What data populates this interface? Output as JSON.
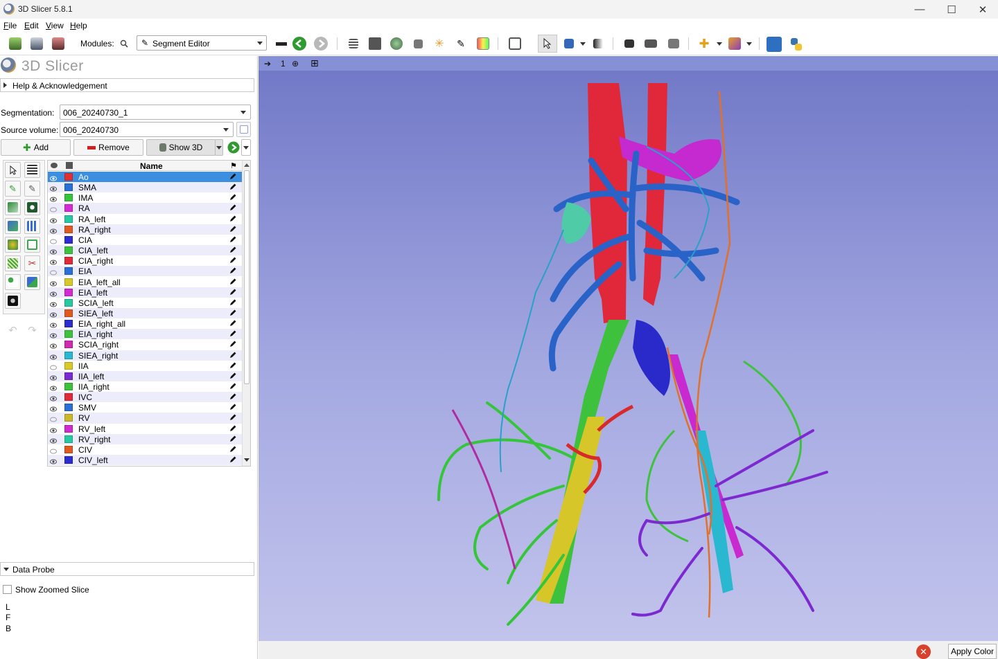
{
  "window": {
    "title": "3D Slicer 5.8.1"
  },
  "menu": [
    "File",
    "Edit",
    "View",
    "Help"
  ],
  "toolbar": {
    "modules_label": "Modules:",
    "module_selected": "Segment Editor",
    "icons": [
      "data-icon",
      "dcm-icon",
      "save-icon"
    ]
  },
  "panel": {
    "logo_text": "3D Slicer",
    "help_section": "Help & Acknowledgement",
    "segmentation_label": "Segmentation:",
    "segmentation_value": "006_20240730_1",
    "source_label": "Source volume:",
    "source_value": "006_20240730",
    "add_label": "Add",
    "remove_label": "Remove",
    "show3d_label": "Show 3D",
    "name_header": "Name"
  },
  "segments": [
    {
      "name": "Ao",
      "color": "#e03030",
      "visible": true,
      "selected": true
    },
    {
      "name": "SMA",
      "color": "#2a6fd6",
      "visible": true
    },
    {
      "name": "IMA",
      "color": "#35c53a",
      "visible": true
    },
    {
      "name": "RA",
      "color": "#d62ad6",
      "visible": false
    },
    {
      "name": "RA_left",
      "color": "#27c9a3",
      "visible": true
    },
    {
      "name": "RA_right",
      "color": "#e05a20",
      "visible": true
    },
    {
      "name": "CIA",
      "color": "#2c2cd0",
      "visible": false
    },
    {
      "name": "CIA_left",
      "color": "#3ec23e",
      "visible": true
    },
    {
      "name": "CIA_right",
      "color": "#e02a3a",
      "visible": true
    },
    {
      "name": "EIA",
      "color": "#2a6fd6",
      "visible": false
    },
    {
      "name": "EIA_left_all",
      "color": "#d8c82a",
      "visible": true
    },
    {
      "name": "EIA_left",
      "color": "#d02ad0",
      "visible": true
    },
    {
      "name": "SCIA_left",
      "color": "#27c9a3",
      "visible": true
    },
    {
      "name": "SIEA_left",
      "color": "#e05a20",
      "visible": true
    },
    {
      "name": "EIA_right_all",
      "color": "#2c2cd0",
      "visible": true
    },
    {
      "name": "EIA_right",
      "color": "#3ec23e",
      "visible": true
    },
    {
      "name": "SCIA_right",
      "color": "#d02ab0",
      "visible": true
    },
    {
      "name": "SIEA_right",
      "color": "#2ab7d0",
      "visible": true
    },
    {
      "name": "IIA",
      "color": "#d8c82a",
      "visible": false
    },
    {
      "name": "IIA_left",
      "color": "#7a2ad0",
      "visible": true
    },
    {
      "name": "IIA_right",
      "color": "#3ec23e",
      "visible": true
    },
    {
      "name": "IVC",
      "color": "#e02a3a",
      "visible": true
    },
    {
      "name": "SMV",
      "color": "#2a6fd6",
      "visible": true
    },
    {
      "name": "RV",
      "color": "#c8b82a",
      "visible": false
    },
    {
      "name": "RV_left",
      "color": "#d02ad0",
      "visible": true
    },
    {
      "name": "RV_right",
      "color": "#27c9a3",
      "visible": true
    },
    {
      "name": "CIV",
      "color": "#e05a20",
      "visible": false
    },
    {
      "name": "CIV_left",
      "color": "#2c2cd0",
      "visible": true
    }
  ],
  "data_probe": {
    "title": "Data Probe",
    "show_zoomed_label": "Show Zoomed Slice",
    "letters": [
      "L",
      "F",
      "B"
    ]
  },
  "view": {
    "index_label": "1"
  },
  "status": {
    "apply_color_label": "Apply Color"
  }
}
